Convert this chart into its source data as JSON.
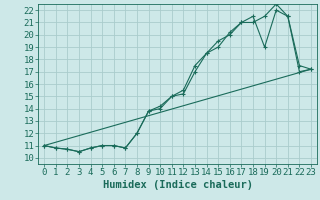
{
  "xlabel": "Humidex (Indice chaleur)",
  "bg_color": "#cde8e8",
  "grid_color": "#aacccc",
  "line_color": "#1a6b5a",
  "xlim": [
    -0.5,
    23.5
  ],
  "ylim": [
    9.5,
    22.5
  ],
  "xticks": [
    0,
    1,
    2,
    3,
    4,
    5,
    6,
    7,
    8,
    9,
    10,
    11,
    12,
    13,
    14,
    15,
    16,
    17,
    18,
    19,
    20,
    21,
    22,
    23
  ],
  "yticks": [
    10,
    11,
    12,
    13,
    14,
    15,
    16,
    17,
    18,
    19,
    20,
    21,
    22
  ],
  "line1_x": [
    0,
    1,
    2,
    3,
    4,
    5,
    6,
    7,
    8,
    9,
    10,
    11,
    12,
    13,
    14,
    15,
    16,
    17,
    18,
    19,
    20,
    21,
    22,
    23
  ],
  "line1_y": [
    11,
    10.8,
    10.7,
    10.5,
    10.8,
    11,
    11,
    10.8,
    12,
    13.8,
    14.2,
    15,
    15.5,
    17.5,
    18.5,
    19.5,
    20,
    21,
    21,
    21.5,
    22.5,
    21.5,
    17,
    17.2
  ],
  "line2_x": [
    0,
    1,
    2,
    3,
    4,
    5,
    6,
    7,
    8,
    9,
    10,
    11,
    12,
    13,
    14,
    15,
    16,
    17,
    18,
    19,
    20,
    21,
    22,
    23
  ],
  "line2_y": [
    11,
    10.8,
    10.7,
    10.5,
    10.8,
    11,
    11,
    10.8,
    12,
    13.8,
    14.0,
    15,
    15.2,
    17.0,
    18.5,
    19.0,
    20.2,
    21.0,
    21.5,
    19.0,
    22.0,
    21.5,
    17.5,
    17.2
  ],
  "line3_x": [
    0,
    23
  ],
  "line3_y": [
    11,
    17.2
  ],
  "font_color": "#1a6b5a",
  "tick_fontsize": 6.5,
  "label_fontsize": 7.5
}
